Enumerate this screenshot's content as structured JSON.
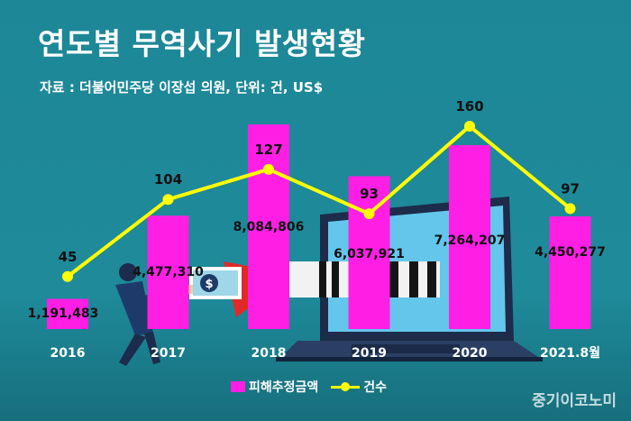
{
  "title": "연도별 무역사기 발생현황",
  "source": "자료 : 더불어민주당 이장섭 의원, 단위: 건, US$",
  "brand": "중기이코노미",
  "colors": {
    "bar": "#ff1fe4",
    "line": "#ffff00",
    "background": "#1f8a99"
  },
  "chart_data": {
    "type": "bar",
    "categories": [
      "2016",
      "2017",
      "2018",
      "2019",
      "2020",
      "2021.8월"
    ],
    "series": [
      {
        "name": "피해추정금액",
        "type": "bar",
        "values": [
          1191483,
          4477310,
          8084806,
          6037921,
          7264207,
          4450277
        ],
        "value_labels": [
          "1,191,483",
          "4,477,310",
          "8,084,806",
          "6,037,921",
          "7,264,207",
          "4,450,277"
        ]
      },
      {
        "name": "건수",
        "type": "line",
        "values": [
          45,
          104,
          127,
          93,
          160,
          97
        ]
      }
    ],
    "legend_position": "bottom-center",
    "grid": false,
    "xlabel": "",
    "ylabel": ""
  }
}
